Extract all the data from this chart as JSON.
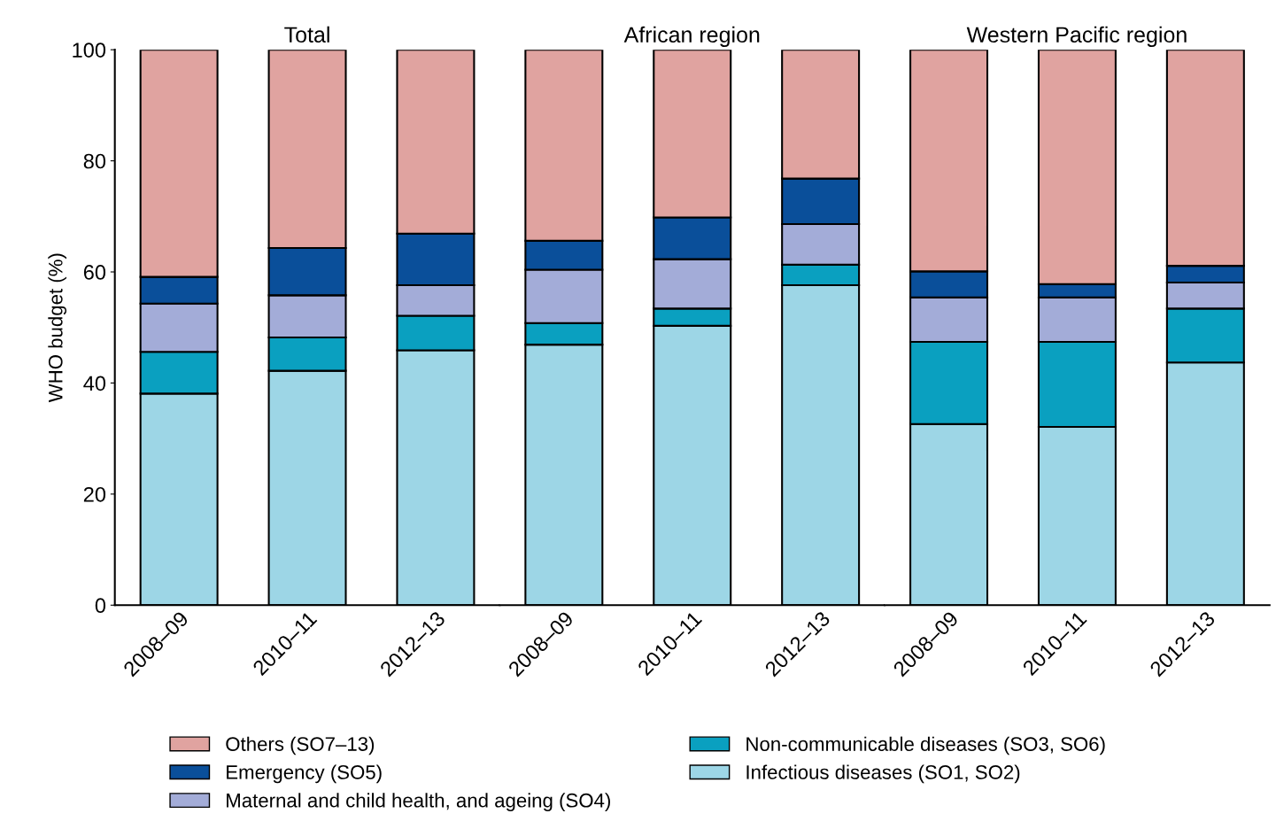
{
  "chart_data": [
    {
      "type": "bar",
      "stacked": true,
      "title": "Total",
      "ylabel": "WHO budget (%)",
      "categories": [
        "2008–09",
        "2010–11",
        "2012–13"
      ],
      "ylim": [
        0,
        100
      ],
      "yticks": [
        0,
        20,
        40,
        60,
        80,
        100
      ],
      "grid": false,
      "legend": "bottom",
      "series": [
        {
          "name": "Infectious diseases (SO1, SO2)",
          "color": "#9dd6e6",
          "values": [
            38.1,
            42.2,
            45.9
          ]
        },
        {
          "name": "Non-communicable diseases (SO3, SO6)",
          "color": "#0aa0c0",
          "values": [
            7.5,
            6.0,
            6.2
          ]
        },
        {
          "name": "Maternal and child health, and ageing (SO4)",
          "color": "#a3acd8",
          "values": [
            8.7,
            7.6,
            5.5
          ]
        },
        {
          "name": "Emergency (SO5)",
          "color": "#0a4f9a",
          "values": [
            4.8,
            8.5,
            9.3
          ]
        },
        {
          "name": "Others (SO7–13)",
          "color": "#e0a3a0",
          "values": [
            40.9,
            35.7,
            33.1
          ]
        }
      ]
    },
    {
      "type": "bar",
      "stacked": true,
      "title": "African region",
      "categories": [
        "2008–09",
        "2010–11",
        "2012–13"
      ],
      "ylim": [
        0,
        100
      ],
      "tick_labels": "x",
      "grid": false,
      "series": [
        {
          "color": "#9dd6e6",
          "values": [
            46.9,
            50.3,
            57.6
          ]
        },
        {
          "color": "#0aa0c0",
          "values": [
            3.9,
            3.1,
            3.7
          ]
        },
        {
          "color": "#a3acd8",
          "values": [
            9.6,
            8.9,
            7.3
          ]
        },
        {
          "color": "#0a4f9a",
          "values": [
            5.2,
            7.5,
            8.2
          ]
        },
        {
          "color": "#e0a3a0",
          "values": [
            34.4,
            30.2,
            23.2
          ]
        }
      ]
    },
    {
      "type": "bar",
      "stacked": true,
      "title": "Western Pacific region",
      "categories": [
        "2008–09",
        "2010–11",
        "2012–13"
      ],
      "ylim": [
        0,
        100
      ],
      "tick_labels": "x",
      "grid": false,
      "series": [
        {
          "color": "#9dd6e6",
          "values": [
            32.6,
            32.1,
            43.7
          ]
        },
        {
          "color": "#0aa0c0",
          "values": [
            14.8,
            15.3,
            9.7
          ]
        },
        {
          "color": "#a3acd8",
          "values": [
            8.0,
            8.0,
            4.7
          ]
        },
        {
          "color": "#0a4f9a",
          "values": [
            4.7,
            2.4,
            3.0
          ]
        },
        {
          "color": "#e0a3a0",
          "values": [
            39.9,
            42.2,
            38.9
          ]
        }
      ]
    }
  ]
}
